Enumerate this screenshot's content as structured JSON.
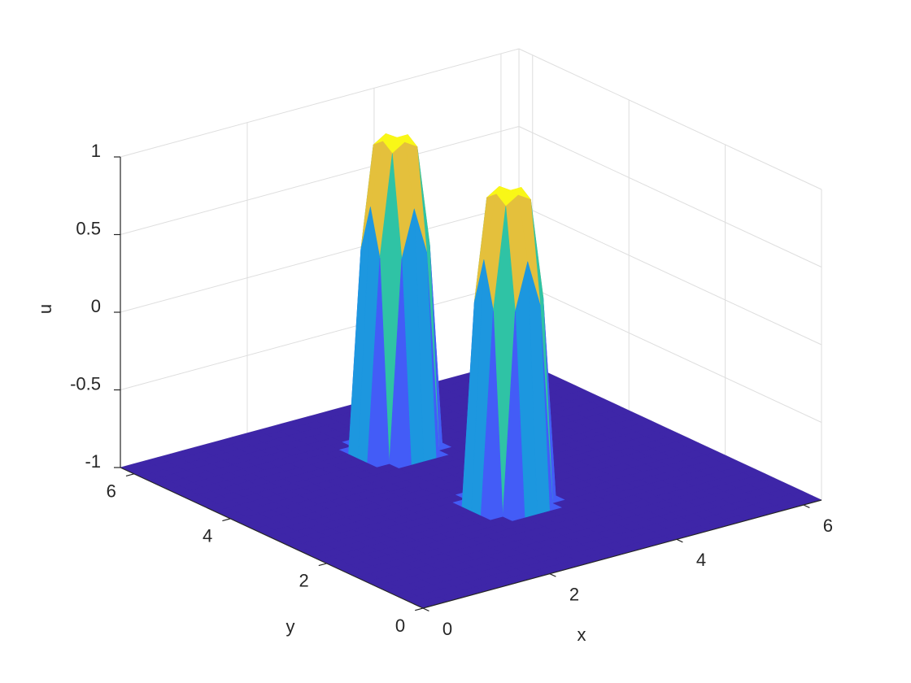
{
  "chart_data": {
    "type": "surface",
    "xlabel": "x",
    "ylabel": "y",
    "zlabel": "u",
    "xlim": [
      0,
      6.2832
    ],
    "ylim": [
      0,
      6.2832
    ],
    "zlim": [
      -1,
      1
    ],
    "xticks": [
      0,
      2,
      4,
      6
    ],
    "yticks": [
      0,
      2,
      4,
      6
    ],
    "zticks": [
      -1,
      -0.5,
      0,
      0.5,
      1
    ],
    "grid": true,
    "colormap": "parula",
    "x": [
      0,
      0.1963,
      0.3927,
      0.589,
      0.7854,
      0.9817,
      1.1781,
      1.3744,
      1.5708,
      1.7671,
      1.9635,
      2.1598,
      2.3562,
      2.5525,
      2.7489,
      2.9452,
      3.1416,
      3.3379,
      3.5343,
      3.7306,
      3.927,
      4.1233,
      4.3197,
      4.516,
      4.7124,
      4.9087,
      5.1051,
      5.3014,
      5.4978,
      5.6941,
      5.8905,
      6.0868,
      6.2832
    ],
    "y": [
      0,
      0.1963,
      0.3927,
      0.589,
      0.7854,
      0.9817,
      1.1781,
      1.3744,
      1.5708,
      1.7671,
      1.9635,
      2.1598,
      2.3562,
      2.5525,
      2.7489,
      2.9452,
      3.1416,
      3.3379,
      3.5343,
      3.7306,
      3.927,
      4.1233,
      4.3197,
      4.516,
      4.7124,
      4.9087,
      5.1051,
      5.3014,
      5.4978,
      5.6941,
      5.8905,
      6.0868,
      6.2832
    ],
    "z": [
      [
        -1,
        -1,
        -1,
        -1,
        -1,
        -1,
        -1,
        -1,
        -1,
        -1,
        -1,
        -1,
        -1,
        -1,
        -1,
        -1,
        -1,
        -1,
        -1,
        -1,
        -1,
        -1,
        -1,
        -1,
        -1,
        -1,
        -1,
        -1,
        -1,
        -1,
        -1,
        -1,
        -1
      ],
      [
        -1,
        -1,
        -1,
        -1,
        -1,
        -1,
        -1,
        -1,
        -1,
        -1,
        -1,
        -1,
        -1,
        -1,
        -1,
        -1,
        -1,
        -1,
        -1,
        -1,
        -1,
        -1,
        -1,
        -1,
        -1,
        -1,
        -1,
        -1,
        -1,
        -1,
        -1,
        -1,
        -1
      ],
      [
        -1,
        -1,
        -1,
        -1,
        -1,
        -1,
        -1,
        -1,
        -1,
        -1,
        -1,
        -1,
        -1,
        -1,
        -1,
        -1,
        -1,
        -1,
        -1,
        -1,
        -1,
        -1,
        -1,
        -1,
        -1,
        -1,
        -1,
        -1,
        -1,
        -1,
        -1,
        -1,
        -1
      ],
      [
        -1,
        -1,
        -1,
        -1,
        -1,
        -1,
        -1,
        -1,
        -1,
        -1,
        -1,
        -1,
        -1,
        -1,
        -1,
        -1,
        -1,
        -1,
        -1,
        -1,
        -1,
        -1,
        -1,
        -1,
        -1,
        -1,
        -1,
        -1,
        -1,
        -1,
        -1,
        -1,
        -1
      ],
      [
        -1,
        -1,
        -1,
        -1,
        -1,
        -1,
        -1,
        -1,
        -1,
        -1,
        -1,
        -1,
        -1,
        -1,
        -1,
        -1,
        -1,
        -1,
        -1,
        -1,
        -1,
        -1,
        -1,
        -1,
        -1,
        -1,
        -1,
        -1,
        -1,
        -1,
        -1,
        -1,
        -1
      ],
      [
        -1,
        -1,
        -1,
        -1,
        -1,
        -1,
        -1,
        -1,
        -1,
        -1,
        -1,
        -1,
        -1,
        -1,
        -1,
        -1,
        -1,
        -1,
        -1,
        -1,
        -1,
        -1,
        -1,
        -1,
        -1,
        -1,
        -1,
        -1,
        -1,
        -1,
        -1,
        -1,
        -1
      ],
      [
        -1,
        -1,
        -1,
        -1,
        -1,
        -1,
        -1,
        -1,
        -1,
        -1,
        -1,
        -1,
        -1,
        -1,
        -1,
        -1,
        -1,
        -1,
        -1,
        -1,
        -1,
        -1,
        -1,
        -1,
        -1,
        -1,
        -1,
        -1,
        -1,
        -1,
        -1,
        -1,
        -1
      ],
      [
        -1,
        -1,
        -1,
        -1,
        -1,
        -1,
        -1,
        -1,
        -1,
        -1,
        -1,
        -1,
        -1,
        -1,
        -1,
        -1,
        -1,
        -1,
        -1,
        -1,
        -1,
        -1,
        -1,
        -1,
        -1,
        -1,
        -1,
        -1,
        -1,
        -1,
        -1,
        -1,
        -1
      ],
      [
        -1,
        -1,
        -1,
        -1,
        -1,
        -1,
        -1,
        -1,
        -1,
        -1,
        -1,
        -1,
        -1,
        -1,
        -1,
        -1,
        -1,
        -1,
        -1,
        -1,
        -1,
        -1,
        -1,
        -1,
        -1,
        -1,
        -1,
        -1,
        -1,
        -1,
        -1,
        -1,
        -1
      ],
      [
        -1,
        -1,
        -1,
        -1,
        -1,
        -1,
        -1,
        -1,
        -1,
        -1,
        -1,
        -1,
        -1,
        -1,
        -1,
        -1,
        -1,
        -1,
        -1,
        -1,
        -1,
        -1,
        -1,
        -1,
        -1,
        -1,
        -1,
        -1,
        -1,
        -1,
        -1,
        -1,
        -1
      ],
      [
        -1,
        -1,
        -1,
        -1,
        -1,
        -1,
        -1,
        -1,
        -1,
        -1,
        -1,
        -1,
        -1,
        -1,
        -1,
        0.3,
        0.6,
        0.3,
        -1,
        -1,
        -1,
        -1,
        -1,
        -1,
        -1,
        -1,
        -1,
        -1,
        -1,
        -1,
        -1,
        -1,
        -1
      ],
      [
        -1,
        -1,
        -1,
        -1,
        -1,
        -1,
        -1,
        -1,
        -1,
        -1,
        -1,
        -1,
        -1,
        -1,
        0.3,
        0.95,
        1,
        0.95,
        0.3,
        -1,
        -1,
        -1,
        -1,
        -1,
        -1,
        -1,
        -1,
        -1,
        -1,
        -1,
        -1,
        -1,
        -1
      ],
      [
        -1,
        -1,
        -1,
        -1,
        -1,
        -1,
        -1,
        -1,
        -1,
        -1,
        -1,
        -1,
        -1,
        -1,
        0.6,
        1,
        1,
        1,
        0.6,
        -1,
        -1,
        -1,
        -1,
        -1,
        -1,
        -1,
        -1,
        -1,
        -1,
        -1,
        -1,
        -1,
        -1
      ],
      [
        -1,
        -1,
        -1,
        -1,
        -1,
        -1,
        -1,
        -1,
        -1,
        -1,
        -1,
        -1,
        -1,
        -1,
        0.3,
        0.95,
        1,
        0.95,
        0.3,
        -1,
        -1,
        -1,
        -1,
        -1,
        -1,
        -1,
        -1,
        -1,
        -1,
        -1,
        -1,
        -1,
        -1
      ],
      [
        -1,
        -1,
        -1,
        -1,
        -1,
        -1,
        -1,
        -1,
        -1,
        -1,
        -1,
        -1,
        -1,
        -1,
        -1,
        0.3,
        0.6,
        0.3,
        -1,
        -1,
        -1,
        -1,
        -1,
        -1,
        -1,
        -1,
        -1,
        -1,
        -1,
        -1,
        -1,
        -1,
        -1
      ],
      [
        -1,
        -1,
        -1,
        -1,
        -1,
        -1,
        -1,
        -1,
        -1,
        -1,
        -1,
        -1,
        -1,
        -1,
        -1,
        -1,
        -1,
        -1,
        -1,
        -1,
        -1,
        -1,
        -1,
        -1,
        -1,
        -1,
        -1,
        -1,
        -1,
        -1,
        -1,
        -1,
        -1
      ],
      [
        -1,
        -1,
        -1,
        -1,
        -1,
        -1,
        -1,
        -1,
        -1,
        -1,
        -1,
        -1,
        -1,
        -1,
        -1,
        -1,
        -1,
        -1,
        -1,
        -1,
        -1,
        -1,
        -1,
        -1,
        -1,
        -1,
        -1,
        -1,
        -1,
        -1,
        -1,
        -1,
        -1
      ],
      [
        -1,
        -1,
        -1,
        -1,
        -1,
        -1,
        -1,
        -1,
        -1,
        -1,
        -1,
        -1,
        -1,
        -1,
        -1,
        -1,
        -1,
        -1,
        -1,
        -1,
        -1,
        -1,
        -1,
        -1,
        -1,
        -1,
        -1,
        -1,
        -1,
        -1,
        -1,
        -1,
        -1
      ],
      [
        -1,
        -1,
        -1,
        -1,
        -1,
        -1,
        -1,
        -1,
        -1,
        -1,
        -1,
        -1,
        -1,
        -1,
        -1,
        -1,
        -1,
        -1,
        -1,
        -1,
        -1,
        -1,
        -1,
        -1,
        -1,
        -1,
        -1,
        -1,
        -1,
        -1,
        -1,
        -1,
        -1
      ],
      [
        -1,
        -1,
        -1,
        -1,
        -1,
        -1,
        -1,
        -1,
        -1,
        -1,
        -1,
        -1,
        -1,
        -1,
        -1,
        -1,
        -1,
        -1,
        -1,
        -1,
        -1,
        -1,
        -1,
        -1,
        -1,
        -1,
        -1,
        -1,
        -1,
        -1,
        -1,
        -1,
        -1
      ],
      [
        -1,
        -1,
        -1,
        -1,
        -1,
        -1,
        -1,
        -1,
        -1,
        -1,
        -1,
        -1,
        -1,
        -1,
        -1,
        -1,
        -1,
        -1,
        -1,
        -1,
        -1,
        -1,
        -1,
        -1,
        -1,
        -1,
        -1,
        -1,
        -1,
        -1,
        -1,
        -1,
        -1
      ],
      [
        -1,
        -1,
        -1,
        -1,
        -1,
        -1,
        -1,
        -1,
        -1,
        -1,
        -1,
        -1,
        -1,
        -1,
        -1,
        -1,
        -1,
        -1,
        -1,
        -1,
        -1,
        -1,
        -1,
        -1,
        -1,
        -1,
        -1,
        -1,
        -1,
        -1,
        -1,
        -1,
        -1
      ],
      [
        -1,
        -1,
        -1,
        -1,
        -1,
        -1,
        -1,
        -1,
        -1,
        -1,
        -1,
        -1,
        -1,
        -1,
        -1,
        0.3,
        0.6,
        0.3,
        -1,
        -1,
        -1,
        -1,
        -1,
        -1,
        -1,
        -1,
        -1,
        -1,
        -1,
        -1,
        -1,
        -1,
        -1
      ],
      [
        -1,
        -1,
        -1,
        -1,
        -1,
        -1,
        -1,
        -1,
        -1,
        -1,
        -1,
        -1,
        -1,
        -1,
        0.3,
        0.95,
        1,
        0.95,
        0.3,
        -1,
        -1,
        -1,
        -1,
        -1,
        -1,
        -1,
        -1,
        -1,
        -1,
        -1,
        -1,
        -1,
        -1
      ],
      [
        -1,
        -1,
        -1,
        -1,
        -1,
        -1,
        -1,
        -1,
        -1,
        -1,
        -1,
        -1,
        -1,
        -1,
        0.6,
        1,
        1,
        1,
        0.6,
        -1,
        -1,
        -1,
        -1,
        -1,
        -1,
        -1,
        -1,
        -1,
        -1,
        -1,
        -1,
        -1,
        -1
      ],
      [
        -1,
        -1,
        -1,
        -1,
        -1,
        -1,
        -1,
        -1,
        -1,
        -1,
        -1,
        -1,
        -1,
        -1,
        0.3,
        0.95,
        1,
        0.95,
        0.3,
        -1,
        -1,
        -1,
        -1,
        -1,
        -1,
        -1,
        -1,
        -1,
        -1,
        -1,
        -1,
        -1,
        -1
      ],
      [
        -1,
        -1,
        -1,
        -1,
        -1,
        -1,
        -1,
        -1,
        -1,
        -1,
        -1,
        -1,
        -1,
        -1,
        -1,
        0.3,
        0.6,
        0.3,
        -1,
        -1,
        -1,
        -1,
        -1,
        -1,
        -1,
        -1,
        -1,
        -1,
        -1,
        -1,
        -1,
        -1,
        -1
      ],
      [
        -1,
        -1,
        -1,
        -1,
        -1,
        -1,
        -1,
        -1,
        -1,
        -1,
        -1,
        -1,
        -1,
        -1,
        -1,
        -1,
        -1,
        -1,
        -1,
        -1,
        -1,
        -1,
        -1,
        -1,
        -1,
        -1,
        -1,
        -1,
        -1,
        -1,
        -1,
        -1,
        -1
      ],
      [
        -1,
        -1,
        -1,
        -1,
        -1,
        -1,
        -1,
        -1,
        -1,
        -1,
        -1,
        -1,
        -1,
        -1,
        -1,
        -1,
        -1,
        -1,
        -1,
        -1,
        -1,
        -1,
        -1,
        -1,
        -1,
        -1,
        -1,
        -1,
        -1,
        -1,
        -1,
        -1,
        -1
      ],
      [
        -1,
        -1,
        -1,
        -1,
        -1,
        -1,
        -1,
        -1,
        -1,
        -1,
        -1,
        -1,
        -1,
        -1,
        -1,
        -1,
        -1,
        -1,
        -1,
        -1,
        -1,
        -1,
        -1,
        -1,
        -1,
        -1,
        -1,
        -1,
        -1,
        -1,
        -1,
        -1,
        -1
      ],
      [
        -1,
        -1,
        -1,
        -1,
        -1,
        -1,
        -1,
        -1,
        -1,
        -1,
        -1,
        -1,
        -1,
        -1,
        -1,
        -1,
        -1,
        -1,
        -1,
        -1,
        -1,
        -1,
        -1,
        -1,
        -1,
        -1,
        -1,
        -1,
        -1,
        -1,
        -1,
        -1,
        -1
      ],
      [
        -1,
        -1,
        -1,
        -1,
        -1,
        -1,
        -1,
        -1,
        -1,
        -1,
        -1,
        -1,
        -1,
        -1,
        -1,
        -1,
        -1,
        -1,
        -1,
        -1,
        -1,
        -1,
        -1,
        -1,
        -1,
        -1,
        -1,
        -1,
        -1,
        -1,
        -1,
        -1,
        -1
      ],
      [
        -1,
        -1,
        -1,
        -1,
        -1,
        -1,
        -1,
        -1,
        -1,
        -1,
        -1,
        -1,
        -1,
        -1,
        -1,
        -1,
        -1,
        -1,
        -1,
        -1,
        -1,
        -1,
        -1,
        -1,
        -1,
        -1,
        -1,
        -1,
        -1,
        -1,
        -1,
        -1,
        -1
      ]
    ]
  }
}
